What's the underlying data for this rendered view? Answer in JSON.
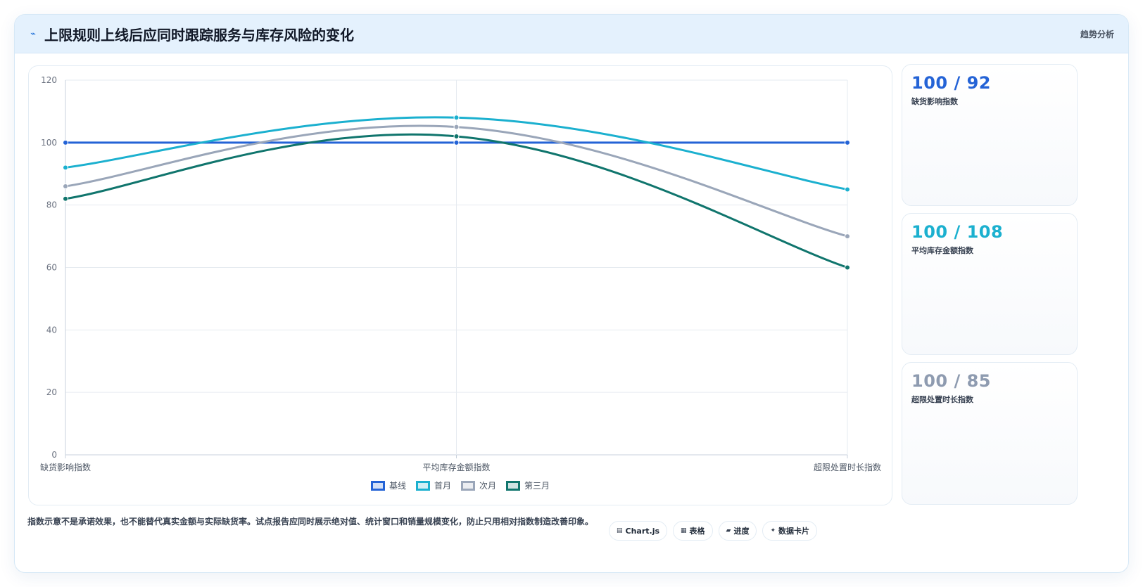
{
  "header": {
    "title": "上限规则上线后应同时跟踪服务与库存风险的变化",
    "icon": "bolt-icon",
    "tag": "趋势分析"
  },
  "chart_data": {
    "type": "line",
    "categories": [
      "缺货影响指数",
      "平均库存金额指数",
      "超限处置时长指数"
    ],
    "ylim": [
      0,
      120
    ],
    "yticks": [
      0,
      20,
      40,
      60,
      80,
      100,
      120
    ],
    "grid": true,
    "legend_position": "bottom",
    "series": [
      {
        "name": "基线",
        "values": [
          100,
          100,
          100
        ],
        "color": "#2463d6"
      },
      {
        "name": "首月",
        "values": [
          92,
          108,
          85
        ],
        "color": "#1bb0cf"
      },
      {
        "name": "次月",
        "values": [
          86,
          105,
          70
        ],
        "color": "#9aa6b9"
      },
      {
        "name": "第三月",
        "values": [
          82,
          102,
          60
        ],
        "color": "#10756d"
      }
    ]
  },
  "stats": [
    {
      "value": "100 / 92",
      "label": "缺货影响指数",
      "color": "#2463d6"
    },
    {
      "value": "100 / 108",
      "label": "平均库存金额指数",
      "color": "#1bb0cf"
    },
    {
      "value": "100 / 85",
      "label": "超限处置时长指数",
      "color": "#8e9bb0"
    }
  ],
  "footer": {
    "note": "指数示意不是承诺效果，也不能替代真实金额与实际缺货率。试点报告应同时展示绝对值、统计窗口和销量规模变化，防止只用相对指数制造改善印象。",
    "pills": [
      {
        "icon": "▤",
        "label": "Chart.js"
      },
      {
        "icon": "▦",
        "label": "表格"
      },
      {
        "icon": "▰",
        "label": "进度"
      },
      {
        "icon": "✦",
        "label": "数据卡片"
      }
    ]
  }
}
